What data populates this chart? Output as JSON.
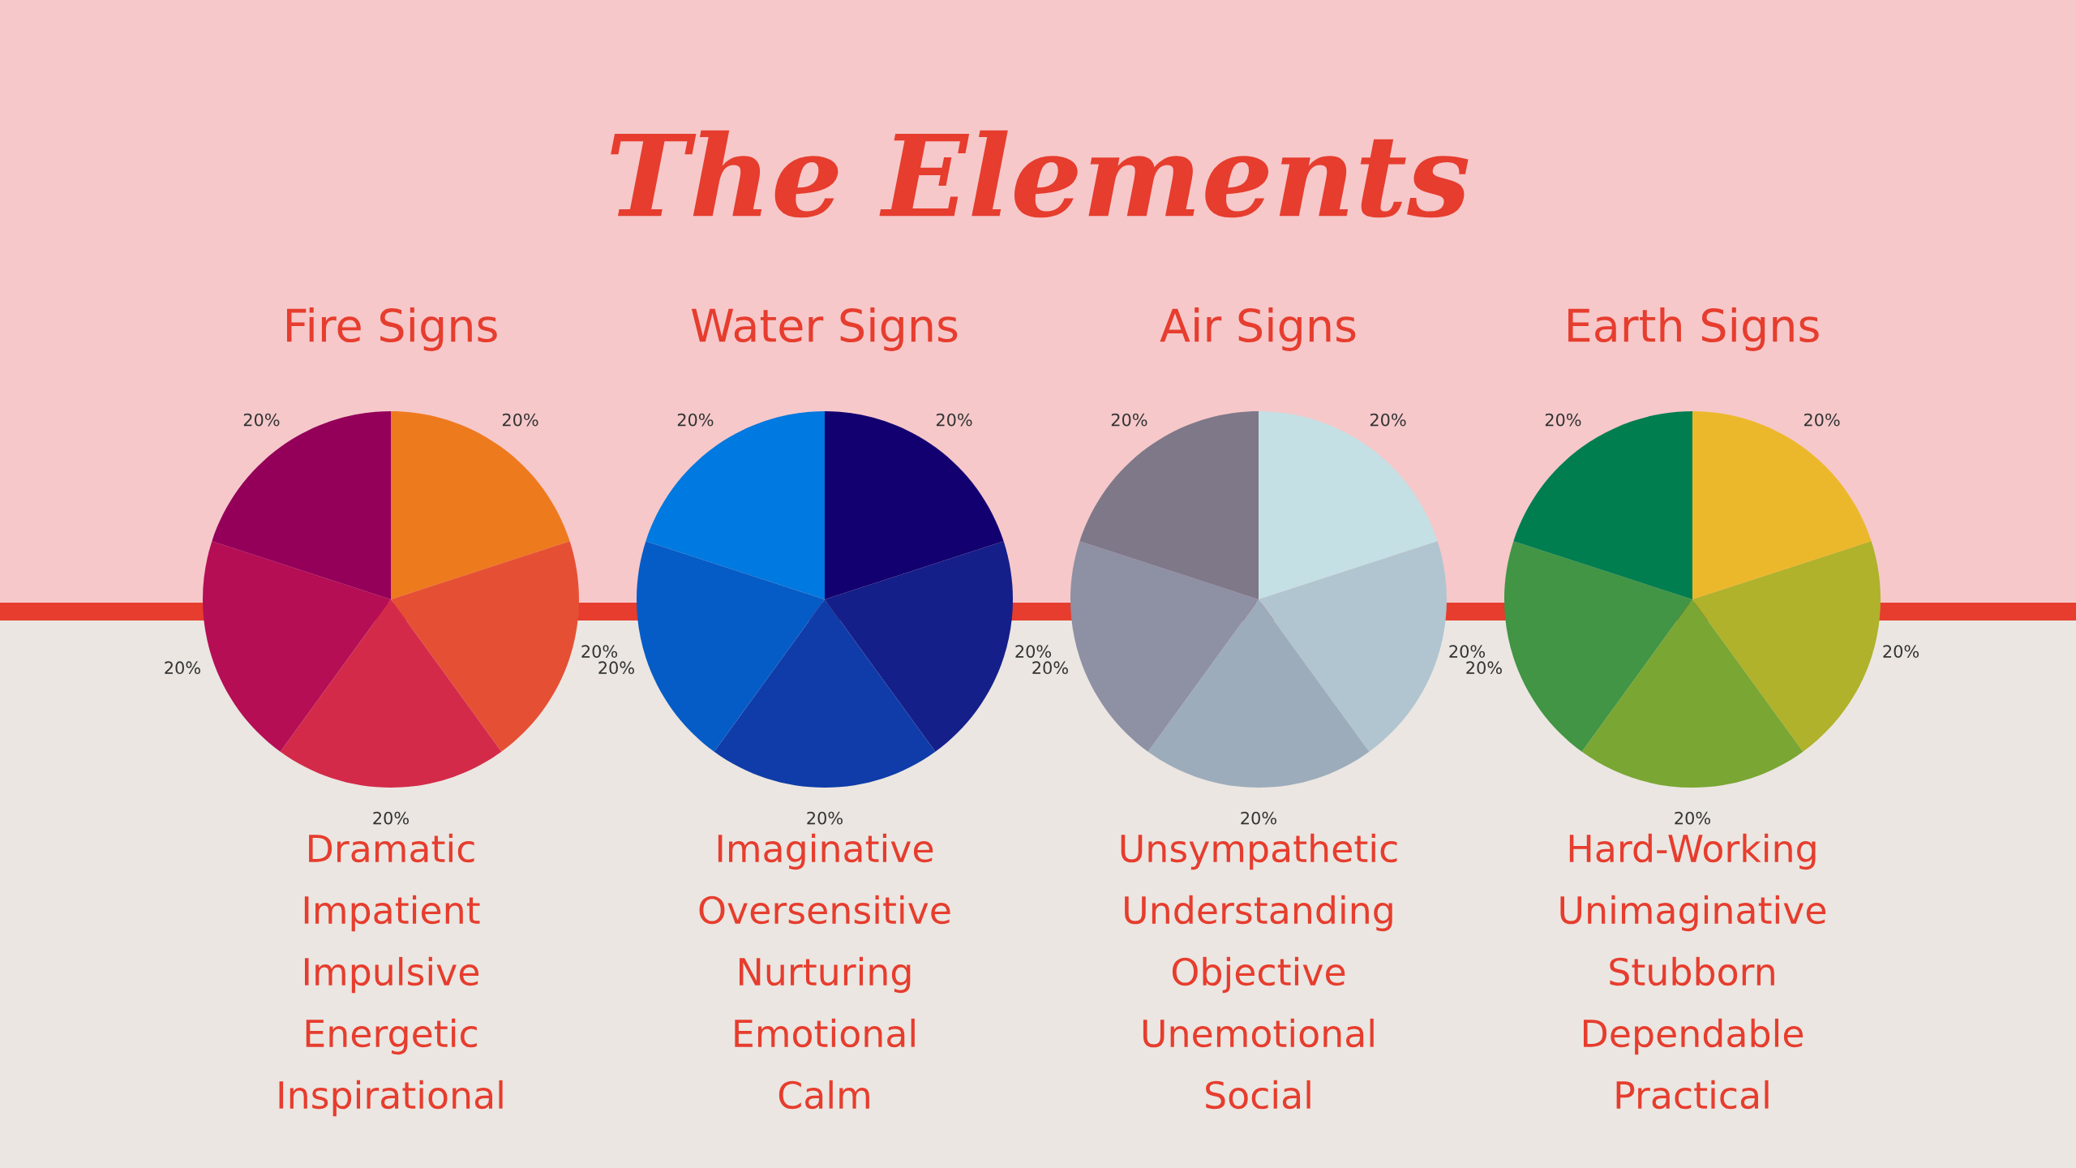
{
  "chart_data": [
    {
      "type": "other",
      "title": "The Elements"
    },
    {
      "type": "pie",
      "title": "Fire Signs",
      "categories": [
        null,
        null,
        null,
        null,
        null
      ],
      "values": [
        20,
        20,
        20,
        20,
        20
      ],
      "colors": [
        "#ee7a1e",
        "#e55035",
        "#d42a4a",
        "#b50e55",
        "#940059"
      ],
      "value_labels": [
        "20%",
        "20%",
        "20%",
        "20%",
        "20%"
      ],
      "annotations": [
        "Dramatic",
        "Impatient",
        "Impulsive",
        "Energetic",
        "Inspirational"
      ]
    },
    {
      "type": "pie",
      "title": "Water Signs",
      "categories": [
        null,
        null,
        null,
        null,
        null
      ],
      "values": [
        20,
        20,
        20,
        20,
        20
      ],
      "colors": [
        "#120070",
        "#151f8a",
        "#0f3ca8",
        "#065cc6",
        "#0079e0"
      ],
      "value_labels": [
        "20%",
        "20%",
        "20%",
        "20%",
        "20%"
      ],
      "annotations": [
        "Imaginative",
        "Oversensitive",
        "Nurturing",
        "Emotional",
        "Calm"
      ]
    },
    {
      "type": "pie",
      "title": "Air Signs",
      "categories": [
        null,
        null,
        null,
        null,
        null
      ],
      "values": [
        20,
        20,
        20,
        20,
        20
      ],
      "colors": [
        "#c4e0e4",
        "#b0c5d0",
        "#9dacbb",
        "#8e90a4",
        "#7e7889"
      ],
      "value_labels": [
        "20%",
        "20%",
        "20%",
        "20%",
        "20%"
      ],
      "annotations": [
        "Unsympathetic",
        "Understanding",
        "Objective",
        "Unemotional",
        "Social"
      ]
    },
    {
      "type": "pie",
      "title": "Earth Signs",
      "categories": [
        null,
        null,
        null,
        null,
        null
      ],
      "values": [
        20,
        20,
        20,
        20,
        20
      ],
      "colors": [
        "#ecb82b",
        "#afb22a",
        "#7aa633",
        "#419544",
        "#017e50"
      ],
      "value_labels": [
        "20%",
        "20%",
        "20%",
        "20%",
        "20%"
      ],
      "annotations": [
        "Hard-Working",
        "Unimaginative",
        "Stubborn",
        "Dependable",
        "Practical"
      ]
    }
  ]
}
